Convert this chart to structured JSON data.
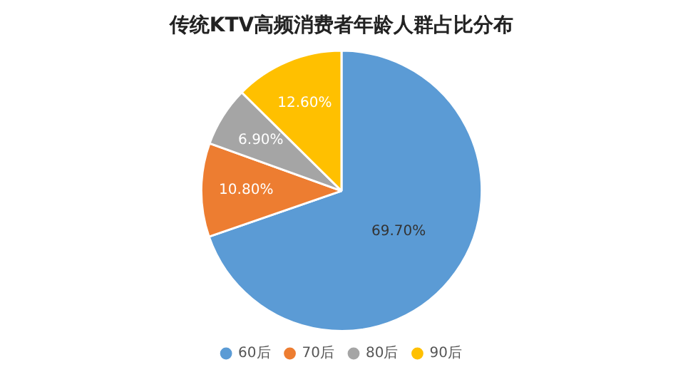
{
  "chart_data": {
    "type": "pie",
    "title": "传统KTV高频消费者年龄人群占比分布",
    "categories": [
      "60后",
      "70后",
      "80后",
      "90后"
    ],
    "values": [
      69.7,
      10.8,
      6.9,
      12.6
    ],
    "colors": [
      "#5b9bd5",
      "#ed7d31",
      "#a5a5a5",
      "#ffc000"
    ],
    "value_labels": [
      "69.70%",
      "10.80%",
      "6.90%",
      "12.60%"
    ],
    "legend": "bottom"
  }
}
